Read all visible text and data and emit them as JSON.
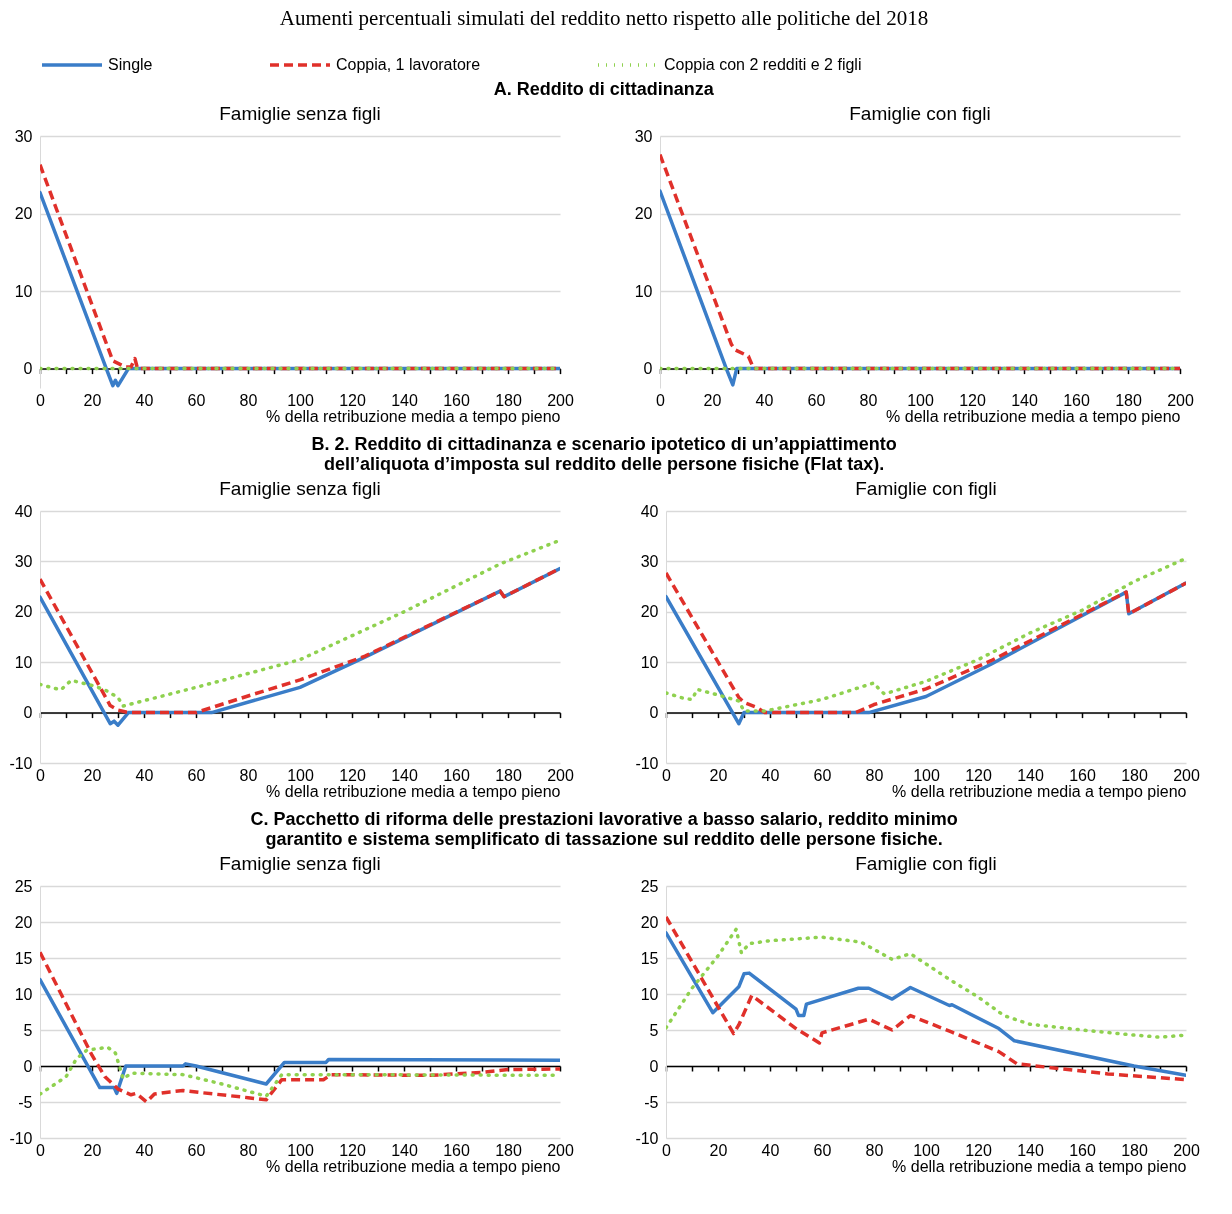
{
  "chart_data": [
    {
      "type": "line",
      "title": "Famiglie senza figli",
      "xlabel": "% della retribuzione media a tempo pieno",
      "annotations": [
        "Aumenti percentuali simulati del reddito netto rispetto alle politiche del 2018",
        "A. Reddito di cittadinanza"
      ],
      "legend": "top",
      "grid": "y",
      "xlim": [
        0,
        200
      ],
      "xticks": [
        0,
        {
          "value": 10,
          "label": null
        },
        20,
        {
          "value": 30,
          "label": null
        },
        40,
        {
          "value": 50,
          "label": null
        },
        60,
        {
          "value": 70,
          "label": null
        },
        80,
        {
          "value": 90,
          "label": null
        },
        100,
        {
          "value": 110,
          "label": null
        },
        120,
        {
          "value": 130,
          "label": null
        },
        140,
        {
          "value": 150,
          "label": null
        },
        160,
        {
          "value": 170,
          "label": null
        },
        180,
        {
          "value": 190,
          "label": null
        },
        200
      ],
      "ylim": [
        -2.5,
        30
      ],
      "yticks": [
        0,
        10,
        20,
        30
      ],
      "series": [
        {
          "name": "Single",
          "color": "#3a7dc8",
          "line_style": "solid",
          "x": [
            0,
            25.5,
            28,
            29,
            30,
            34,
            200
          ],
          "values": [
            22.7,
            0,
            -2.2,
            -1.5,
            -2.2,
            0,
            0
          ]
        },
        {
          "name": "Coppia, 1 lavoratore",
          "color": "#e0302a",
          "line_style": "dashed",
          "x": [
            0,
            28,
            33,
            35,
            36.5,
            37.5,
            200
          ],
          "values": [
            26.3,
            1,
            0.2,
            0.2,
            1.3,
            0,
            0
          ]
        },
        {
          "name": "Coppia con 2 redditi e 2 figli",
          "color": "#8fd14f",
          "line_style": "dotted",
          "x": [
            0,
            200
          ],
          "values": [
            0,
            0
          ]
        }
      ]
    },
    {
      "type": "line",
      "title": "Famiglie con figli",
      "xlabel": "% della retribuzione media a tempo pieno",
      "grid": "y",
      "xlim": [
        0,
        200
      ],
      "xticks": [
        0,
        {
          "value": 10,
          "label": null
        },
        20,
        {
          "value": 30,
          "label": null
        },
        40,
        {
          "value": 50,
          "label": null
        },
        60,
        {
          "value": 70,
          "label": null
        },
        80,
        {
          "value": 90,
          "label": null
        },
        100,
        {
          "value": 110,
          "label": null
        },
        120,
        {
          "value": 130,
          "label": null
        },
        140,
        {
          "value": 150,
          "label": null
        },
        160,
        {
          "value": 170,
          "label": null
        },
        180,
        {
          "value": 190,
          "label": null
        },
        200
      ],
      "ylim": [
        -2.5,
        30
      ],
      "yticks": [
        0,
        10,
        20,
        30
      ],
      "series": [
        {
          "color": "#3a7dc8",
          "line_style": "solid",
          "x": [
            0,
            25.5,
            28,
            29.5,
            200
          ],
          "values": [
            22.9,
            0,
            -2.1,
            0,
            0
          ]
        },
        {
          "color": "#e0302a",
          "line_style": "dashed",
          "x": [
            0,
            27.5,
            29,
            34,
            36,
            200
          ],
          "values": [
            27.6,
            3.1,
            2.4,
            1.6,
            0,
            0
          ]
        },
        {
          "color": "#8fd14f",
          "line_style": "dotted",
          "x": [
            0,
            200
          ],
          "values": [
            0,
            0
          ]
        }
      ]
    },
    {
      "type": "line",
      "title": "Famiglie senza figli",
      "xlabel": "% della retribuzione media a tempo pieno",
      "annotations": [
        "B. 2. Reddito di cittadinanza e scenario ipotetico di un’appiattimento dell’aliquota d’imposta sul reddito delle persone fisiche (Flat tax)."
      ],
      "grid": "y",
      "xlim": [
        0,
        200
      ],
      "xticks": [
        0,
        {
          "value": 10,
          "label": null
        },
        20,
        {
          "value": 30,
          "label": null
        },
        40,
        {
          "value": 50,
          "label": null
        },
        60,
        {
          "value": 70,
          "label": null
        },
        80,
        {
          "value": 90,
          "label": null
        },
        100,
        {
          "value": 110,
          "label": null
        },
        120,
        {
          "value": 130,
          "label": null
        },
        140,
        {
          "value": 150,
          "label": null
        },
        160,
        {
          "value": 170,
          "label": null
        },
        180,
        {
          "value": 190,
          "label": null
        },
        200
      ],
      "ylim": [
        -10,
        40
      ],
      "yticks": [
        -10,
        0,
        10,
        20,
        30,
        40
      ],
      "series": [
        {
          "color": "#3a7dc8",
          "line_style": "solid",
          "x": [
            0,
            27,
            28.5,
            30,
            34,
            66,
            100,
            125,
            177,
            178.5,
            200
          ],
          "values": [
            22.9,
            -2.2,
            -1.7,
            -2.5,
            0,
            0,
            5,
            11,
            24.1,
            23,
            28.6
          ]
        },
        {
          "color": "#e0302a",
          "line_style": "dashed",
          "x": [
            0,
            27,
            30,
            34,
            60,
            80,
            100,
            125,
            177,
            178.5,
            200
          ],
          "values": [
            26.5,
            1.4,
            0.5,
            0,
            0,
            3.3,
            6.5,
            11.2,
            24.1,
            23,
            28.6
          ]
        },
        {
          "color": "#8fd14f",
          "line_style": "dotted",
          "x": [
            0,
            8,
            12,
            20,
            25,
            30,
            32,
            60,
            100,
            140,
            177,
            200
          ],
          "values": [
            5.6,
            4.5,
            6.4,
            5.4,
            4.5,
            3,
            1.3,
            5,
            10.5,
            20,
            29.5,
            34.2
          ]
        }
      ]
    },
    {
      "type": "line",
      "title": "Famiglie con figli",
      "xlabel": "% della retribuzione media a tempo pieno",
      "grid": "y",
      "xlim": [
        0,
        200
      ],
      "xticks": [
        0,
        {
          "value": 10,
          "label": null
        },
        20,
        {
          "value": 30,
          "label": null
        },
        40,
        {
          "value": 50,
          "label": null
        },
        60,
        {
          "value": 70,
          "label": null
        },
        80,
        {
          "value": 90,
          "label": null
        },
        100,
        {
          "value": 110,
          "label": null
        },
        120,
        {
          "value": 130,
          "label": null
        },
        140,
        {
          "value": 150,
          "label": null
        },
        160,
        {
          "value": 170,
          "label": null
        },
        180,
        {
          "value": 190,
          "label": null
        },
        200
      ],
      "ylim": [
        -10,
        40
      ],
      "yticks": [
        -10,
        0,
        10,
        20,
        30,
        40
      ],
      "series": [
        {
          "color": "#3a7dc8",
          "line_style": "solid",
          "x": [
            0,
            28,
            30,
            78,
            100,
            125,
            177,
            178,
            200
          ],
          "values": [
            23,
            -2.2,
            0,
            0,
            3.2,
            9.6,
            23.9,
            19.6,
            25.7
          ]
        },
        {
          "color": "#e0302a",
          "line_style": "dashed",
          "x": [
            0,
            28,
            30,
            35,
            38,
            73,
            80,
            100,
            125,
            177,
            178,
            200
          ],
          "values": [
            27.7,
            3,
            2,
            1,
            0,
            0,
            1.6,
            4.7,
            10.3,
            23.9,
            19.6,
            25.7
          ]
        },
        {
          "color": "#8fd14f",
          "line_style": "dotted",
          "x": [
            0,
            7,
            10,
            12,
            20,
            28,
            30,
            38,
            60,
            80,
            82,
            84,
            100,
            120,
            140,
            160,
            180,
            200
          ],
          "values": [
            3.9,
            2.8,
            2.6,
            4.6,
            3.5,
            2.3,
            0.3,
            0.3,
            2.6,
            5.9,
            4.6,
            3.7,
            6.2,
            10.5,
            15.8,
            20.3,
            26,
            30.6
          ]
        }
      ]
    },
    {
      "type": "line",
      "title": "Famiglie senza figli",
      "xlabel": "% della retribuzione media a tempo pieno",
      "annotations": [
        "C. Pacchetto di riforma delle prestazioni lavorative a basso salario, reddito minimo garantito e sistema semplificato di tassazione sul reddito delle persone fisiche."
      ],
      "grid": "y",
      "xlim": [
        0,
        200
      ],
      "xticks": [
        0,
        {
          "value": 10,
          "label": null
        },
        20,
        {
          "value": 30,
          "label": null
        },
        40,
        {
          "value": 50,
          "label": null
        },
        60,
        {
          "value": 70,
          "label": null
        },
        80,
        {
          "value": 90,
          "label": null
        },
        100,
        {
          "value": 110,
          "label": null
        },
        120,
        {
          "value": 130,
          "label": null
        },
        140,
        {
          "value": 150,
          "label": null
        },
        160,
        {
          "value": 170,
          "label": null
        },
        180,
        {
          "value": 190,
          "label": null
        },
        200
      ],
      "ylim": [
        -10,
        25
      ],
      "yticks": [
        -10,
        -5,
        0,
        5,
        10,
        15,
        20,
        25
      ],
      "series": [
        {
          "color": "#3a7dc8",
          "line_style": "solid",
          "x": [
            0,
            23,
            28.5,
            29.5,
            33,
            55,
            56,
            60,
            87,
            94,
            110,
            111,
            200
          ],
          "values": [
            12,
            -3,
            -3,
            -3.8,
            0,
            0,
            0.3,
            0,
            -2.5,
            0.5,
            0.5,
            0.9,
            0.8
          ]
        },
        {
          "color": "#e0302a",
          "line_style": "dashed",
          "x": [
            0,
            20,
            25,
            30,
            35,
            37,
            41,
            44,
            50,
            55,
            62,
            80,
            87,
            93,
            109,
            112,
            150,
            170,
            180,
            200
          ],
          "values": [
            15.8,
            1.5,
            -1.5,
            -3.2,
            -4,
            -3.8,
            -5,
            -3.9,
            -3.6,
            -3.4,
            -3.7,
            -4.4,
            -4.7,
            -1.9,
            -1.9,
            -1.2,
            -1.3,
            -0.9,
            -0.5,
            -0.4
          ]
        },
        {
          "color": "#8fd14f",
          "line_style": "dotted",
          "x": [
            0,
            10,
            14,
            18,
            26,
            29,
            32,
            35,
            55,
            70,
            87,
            93,
            110,
            200
          ],
          "values": [
            -3.9,
            -1.5,
            1,
            2.2,
            2.6,
            1.8,
            -1.8,
            -1,
            -1.2,
            -2.5,
            -4.2,
            -1.2,
            -1.2,
            -1.3
          ]
        }
      ]
    },
    {
      "type": "line",
      "title": "Famiglie con figli",
      "xlabel": "% della retribuzione media a tempo pieno",
      "grid": "y",
      "xlim": [
        0,
        200
      ],
      "xticks": [
        0,
        {
          "value": 10,
          "label": null
        },
        20,
        {
          "value": 30,
          "label": null
        },
        40,
        {
          "value": 50,
          "label": null
        },
        60,
        {
          "value": 70,
          "label": null
        },
        80,
        {
          "value": 90,
          "label": null
        },
        100,
        {
          "value": 110,
          "label": null
        },
        120,
        {
          "value": 130,
          "label": null
        },
        140,
        {
          "value": 150,
          "label": null
        },
        160,
        {
          "value": 170,
          "label": null
        },
        180,
        {
          "value": 190,
          "label": null
        },
        200
      ],
      "ylim": [
        -10,
        25
      ],
      "yticks": [
        -10,
        -5,
        0,
        5,
        10,
        15,
        20,
        25
      ],
      "series": [
        {
          "color": "#3a7dc8",
          "line_style": "solid",
          "x": [
            0,
            18,
            28,
            30,
            32,
            50,
            51,
            53,
            54,
            74,
            78,
            87,
            94,
            109,
            110,
            128,
            134,
            180,
            200
          ],
          "values": [
            18.5,
            7.4,
            11,
            12.8,
            12.9,
            7.9,
            7,
            7,
            8.6,
            10.8,
            10.8,
            9.3,
            10.9,
            8.4,
            8.5,
            5.2,
            3.5,
            0,
            -1.3
          ]
        },
        {
          "color": "#e0302a",
          "line_style": "dashed",
          "x": [
            0,
            26,
            28,
            33,
            50,
            59,
            60,
            78,
            87,
            94,
            110,
            128,
            135,
            150,
            170,
            200
          ],
          "values": [
            20.7,
            4.5,
            5.7,
            9.8,
            5.2,
            3.2,
            4.6,
            6.5,
            5,
            7,
            4.7,
            2,
            0.3,
            -0.3,
            -1.1,
            -1.9
          ]
        },
        {
          "color": "#8fd14f",
          "line_style": "dotted",
          "x": [
            0,
            10,
            20,
            27,
            29,
            32,
            40,
            60,
            75,
            87,
            94,
            110,
            120,
            130,
            140,
            160,
            180,
            190,
            200
          ],
          "values": [
            5.3,
            10.8,
            15.3,
            19,
            15.7,
            17,
            17.4,
            17.9,
            17.2,
            14.8,
            15.6,
            11.8,
            9.6,
            7,
            5.8,
            5,
            4.3,
            4,
            4.3
          ]
        }
      ]
    }
  ]
}
